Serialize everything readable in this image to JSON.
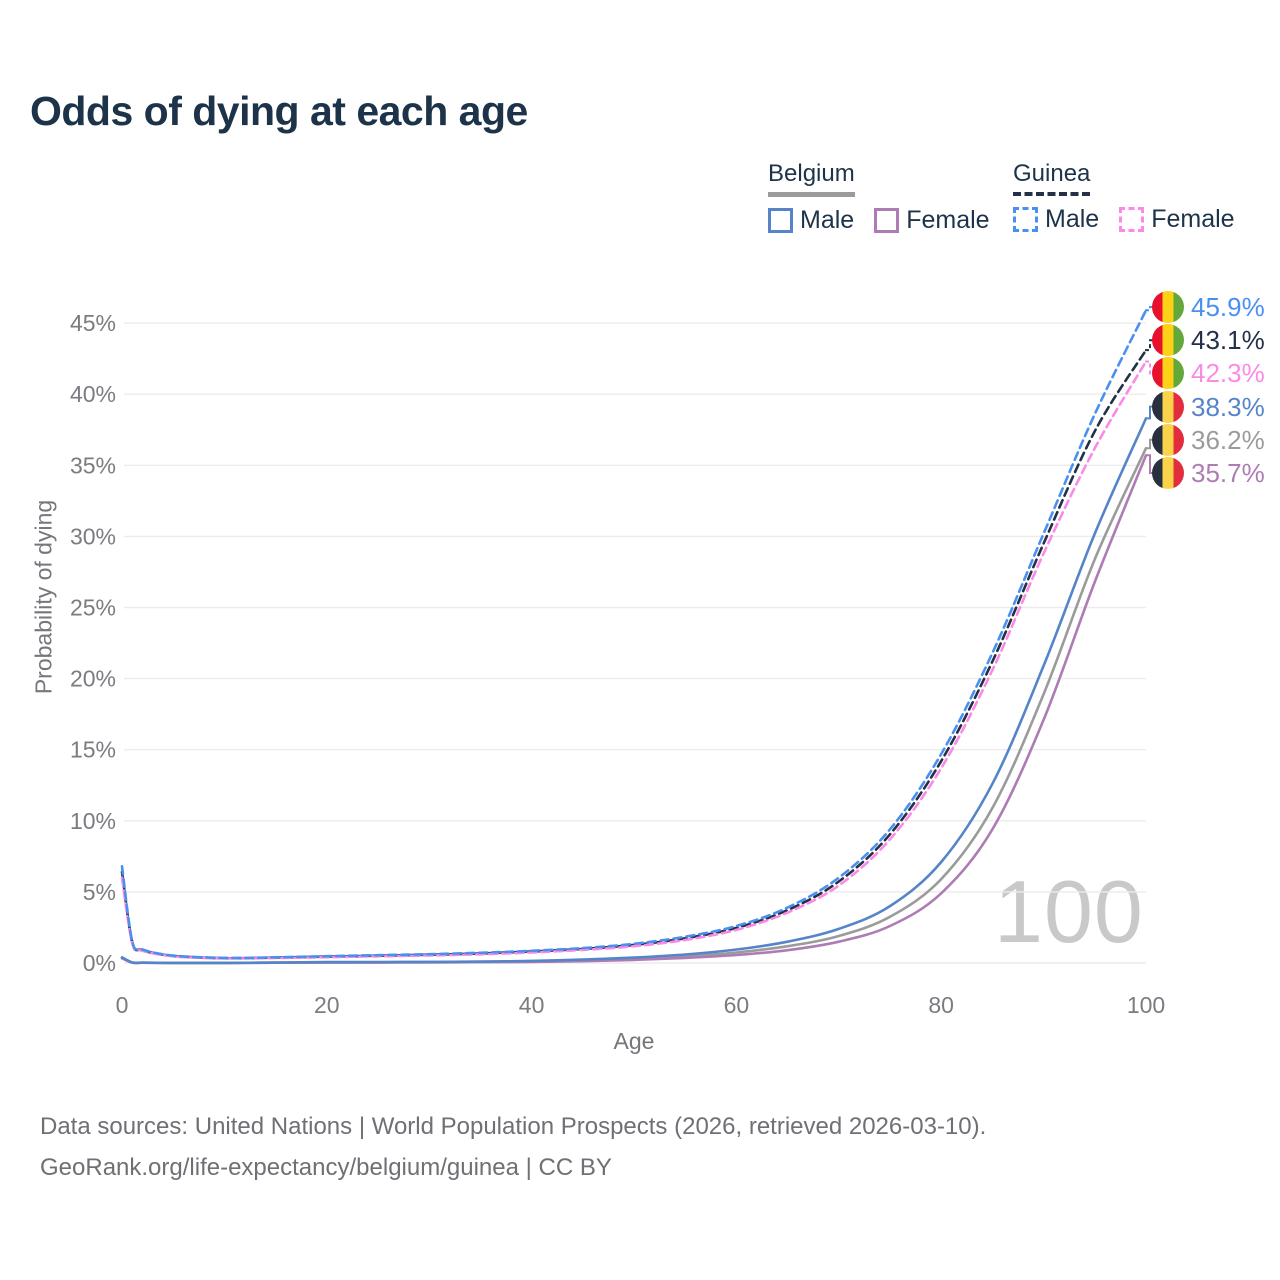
{
  "header": {
    "title": "Odds of dying at each age"
  },
  "legend": {
    "belgium": {
      "label": "Belgium",
      "male": "Male",
      "female": "Female"
    },
    "guinea": {
      "label": "Guinea",
      "male": "Male",
      "female": "Female"
    }
  },
  "footer": {
    "line1": "Data sources: United Nations | World Population Prospects (2026, retrieved 2026-03-10).",
    "line2": "GeoRank.org/life-expectancy/belgium/guinea | CC BY"
  },
  "colors": {
    "title_text": "#1d3349",
    "tick_text": "#7b7b81",
    "grid": "#ececec",
    "watermark": "#c9c9c9",
    "footer_text": "#6f6f75",
    "belgium_male": "#5585c8",
    "belgium_female": "#ae7cb4",
    "belgium_total": "#9b9b9b",
    "guinea_male": "#4a90f0",
    "guinea_female": "#fb8ae6",
    "guinea_total": "#233048",
    "flag_guinea": [
      "#e8112d",
      "#fcd116",
      "#64a83a"
    ],
    "flag_belgium": [
      "#28303f",
      "#fbd34a",
      "#e22d3f"
    ]
  },
  "chart_data": {
    "type": "line",
    "title": "Odds of dying at each age",
    "xlabel": "Age",
    "ylabel": "Probability of dying",
    "watermark": "100",
    "xlim": [
      0,
      100
    ],
    "ylim": [
      0,
      46.5
    ],
    "grid": "horizontal",
    "legend_position": "top-right",
    "x_ticks": [
      {
        "label": "0",
        "value": 0
      },
      {
        "label": "20",
        "value": 20
      },
      {
        "label": "40",
        "value": 40
      },
      {
        "label": "60",
        "value": 60
      },
      {
        "label": "80",
        "value": 80
      },
      {
        "label": "100",
        "value": 100
      }
    ],
    "y_ticks": [
      {
        "label": "0%",
        "value": 0
      },
      {
        "label": "5%",
        "value": 5
      },
      {
        "label": "10%",
        "value": 10
      },
      {
        "label": "15%",
        "value": 15
      },
      {
        "label": "20%",
        "value": 20
      },
      {
        "label": "25%",
        "value": 25
      },
      {
        "label": "30%",
        "value": 30
      },
      {
        "label": "35%",
        "value": 35
      },
      {
        "label": "40%",
        "value": 40
      },
      {
        "label": "45%",
        "value": 45
      }
    ],
    "ages": [
      0,
      1,
      2,
      5,
      10,
      15,
      20,
      25,
      30,
      35,
      40,
      45,
      50,
      55,
      60,
      65,
      70,
      75,
      80,
      85,
      90,
      95,
      100
    ],
    "series": [
      {
        "name": "Belgium",
        "country": "belgium",
        "sex": "total",
        "style": "solid",
        "color_key": "belgium_total",
        "end_label": "36.2%",
        "end_value": 36.2,
        "values": [
          0.37,
          0.03,
          0.02,
          0.01,
          0.01,
          0.02,
          0.04,
          0.05,
          0.06,
          0.08,
          0.11,
          0.18,
          0.3,
          0.47,
          0.74,
          1.18,
          1.9,
          3.25,
          5.9,
          10.9,
          18.9,
          28.4,
          36.2
        ]
      },
      {
        "name": "Belgium Female",
        "country": "belgium",
        "sex": "female",
        "style": "solid",
        "color_key": "belgium_female",
        "end_label": "35.7%",
        "end_value": 35.7,
        "values": [
          0.33,
          0.03,
          0.02,
          0.01,
          0.01,
          0.02,
          0.03,
          0.03,
          0.04,
          0.06,
          0.08,
          0.13,
          0.22,
          0.36,
          0.56,
          0.9,
          1.5,
          2.6,
          4.9,
          9.4,
          17.1,
          26.8,
          35.7
        ]
      },
      {
        "name": "Belgium Male",
        "country": "belgium",
        "sex": "male",
        "style": "solid",
        "color_key": "belgium_male",
        "end_label": "38.3%",
        "end_value": 38.3,
        "values": [
          0.4,
          0.04,
          0.02,
          0.01,
          0.01,
          0.03,
          0.06,
          0.07,
          0.08,
          0.1,
          0.15,
          0.24,
          0.38,
          0.6,
          0.95,
          1.5,
          2.4,
          4.0,
          7.1,
          12.6,
          20.9,
          30.2,
          38.3
        ]
      },
      {
        "name": "Guinea",
        "country": "guinea",
        "sex": "total",
        "style": "dashed",
        "color_key": "guinea_total",
        "end_label": "43.1%",
        "end_value": 43.1,
        "values": [
          6.4,
          1.48,
          0.9,
          0.5,
          0.34,
          0.38,
          0.45,
          0.51,
          0.58,
          0.67,
          0.81,
          0.99,
          1.27,
          1.74,
          2.47,
          3.72,
          5.73,
          9.05,
          14.2,
          21.2,
          29.5,
          37.4,
          43.1
        ]
      },
      {
        "name": "Guinea Female",
        "country": "guinea",
        "sex": "female",
        "style": "dashed",
        "color_key": "guinea_female",
        "end_label": "42.3%",
        "end_value": 42.3,
        "values": [
          6.0,
          1.4,
          0.86,
          0.47,
          0.32,
          0.35,
          0.41,
          0.47,
          0.53,
          0.61,
          0.74,
          0.92,
          1.18,
          1.62,
          2.33,
          3.55,
          5.45,
          8.7,
          13.7,
          20.6,
          28.8,
          36.2,
          42.3
        ]
      },
      {
        "name": "Guinea Male",
        "country": "guinea",
        "sex": "male",
        "style": "dashed",
        "color_key": "guinea_male",
        "end_label": "45.9%",
        "end_value": 45.9,
        "values": [
          6.8,
          1.55,
          0.95,
          0.52,
          0.36,
          0.4,
          0.48,
          0.55,
          0.62,
          0.72,
          0.86,
          1.05,
          1.35,
          1.85,
          2.6,
          3.9,
          6.0,
          9.4,
          14.7,
          21.8,
          30.2,
          38.6,
          45.9
        ]
      }
    ]
  }
}
